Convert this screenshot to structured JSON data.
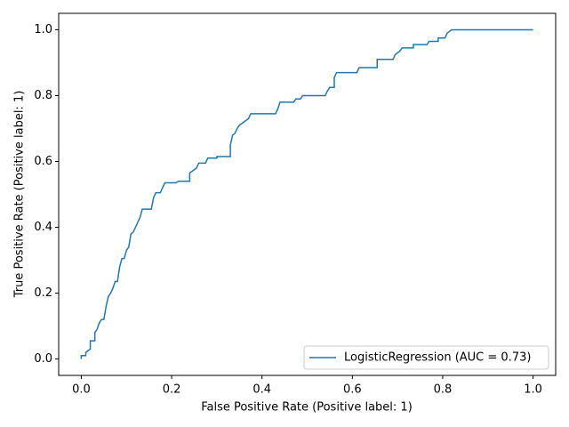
{
  "chart_data": {
    "type": "line",
    "xlabel": "False Positive Rate (Positive label: 1)",
    "ylabel": "True Positive Rate (Positive label: 1)",
    "x": [
      0,
      0,
      0.01,
      0.01,
      0.02,
      0.02,
      0.03,
      0.03,
      0.035,
      0.04,
      0.045,
      0.05,
      0.055,
      0.06,
      0.065,
      0.07,
      0.075,
      0.08,
      0.085,
      0.09,
      0.095,
      0.1,
      0.105,
      0.11,
      0.115,
      0.12,
      0.125,
      0.13,
      0.135,
      0.155,
      0.16,
      0.165,
      0.175,
      0.18,
      0.185,
      0.21,
      0.215,
      0.24,
      0.24,
      0.25,
      0.255,
      0.26,
      0.275,
      0.28,
      0.3,
      0.3,
      0.33,
      0.33,
      0.335,
      0.34,
      0.345,
      0.35,
      0.36,
      0.37,
      0.375,
      0.43,
      0.435,
      0.44,
      0.47,
      0.475,
      0.485,
      0.49,
      0.54,
      0.545,
      0.55,
      0.56,
      0.56,
      0.565,
      0.61,
      0.615,
      0.655,
      0.655,
      0.69,
      0.695,
      0.705,
      0.71,
      0.735,
      0.735,
      0.765,
      0.77,
      0.79,
      0.79,
      0.805,
      0.81,
      0.82,
      1.0
    ],
    "series": [
      {
        "name": "LogisticRegression (AUC = 0.73)",
        "color": "#1f77b4",
        "values": [
          0,
          0.01,
          0.01,
          0.02,
          0.03,
          0.055,
          0.055,
          0.08,
          0.09,
          0.11,
          0.12,
          0.12,
          0.16,
          0.19,
          0.2,
          0.215,
          0.235,
          0.235,
          0.28,
          0.305,
          0.305,
          0.33,
          0.34,
          0.38,
          0.385,
          0.4,
          0.415,
          0.43,
          0.455,
          0.455,
          0.49,
          0.505,
          0.505,
          0.52,
          0.535,
          0.535,
          0.54,
          0.54,
          0.565,
          0.575,
          0.58,
          0.595,
          0.595,
          0.61,
          0.61,
          0.615,
          0.615,
          0.65,
          0.68,
          0.685,
          0.7,
          0.71,
          0.72,
          0.73,
          0.745,
          0.745,
          0.76,
          0.78,
          0.78,
          0.79,
          0.79,
          0.8,
          0.8,
          0.815,
          0.825,
          0.825,
          0.855,
          0.87,
          0.87,
          0.885,
          0.885,
          0.91,
          0.91,
          0.925,
          0.935,
          0.945,
          0.945,
          0.955,
          0.955,
          0.965,
          0.965,
          0.975,
          0.975,
          0.99,
          1.0,
          1.0
        ]
      }
    ],
    "xlim": [
      -0.05,
      1.05
    ],
    "ylim": [
      -0.05,
      1.05
    ],
    "xticks": [
      {
        "value": 0,
        "label": "0.0"
      },
      0.2,
      0.4,
      0.6,
      0.8,
      {
        "value": 1,
        "label": "1.0"
      }
    ],
    "yticks": [
      {
        "value": 0,
        "label": "0.0"
      },
      0.2,
      0.4,
      0.6,
      0.8,
      {
        "value": 1,
        "label": "1.0"
      }
    ],
    "legend": "lower right"
  }
}
